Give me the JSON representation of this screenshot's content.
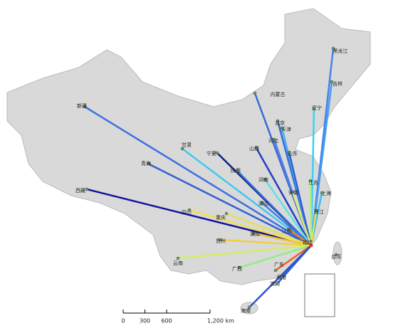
{
  "origin": {
    "name": "福建"
  },
  "provinces": [
    {
      "name": "黑龙江",
      "color": "#4a80e8"
    },
    {
      "name": "吉林",
      "color": "#40a0f0"
    },
    {
      "name": "内蒙古",
      "color": "#3a6ad8"
    },
    {
      "name": "辽宁",
      "color": "#40d0f0"
    },
    {
      "name": "北京",
      "color": "#3a6ad8"
    },
    {
      "name": "天津",
      "color": "#40b0f0"
    },
    {
      "name": "河北",
      "color": "#5080e0"
    },
    {
      "name": "山西",
      "color": "#2040c0"
    },
    {
      "name": "山东",
      "color": "#3060d0"
    },
    {
      "name": "宁夏",
      "color": "#102080"
    },
    {
      "name": "甘肃",
      "color": "#40c8f0"
    },
    {
      "name": "新疆",
      "color": "#3f6fe0"
    },
    {
      "name": "青海",
      "color": "#3060d0"
    },
    {
      "name": "陕西",
      "color": "#3070e0"
    },
    {
      "name": "河南",
      "color": "#60e0e0"
    },
    {
      "name": "江苏",
      "color": "#b0f080"
    },
    {
      "name": "安徽",
      "color": "#e0f060"
    },
    {
      "name": "上海",
      "color": "#40c0f0"
    },
    {
      "name": "湖北",
      "color": "#4080e0"
    },
    {
      "name": "西藏",
      "color": "#1010a0"
    },
    {
      "name": "四川",
      "color": "#f0e050"
    },
    {
      "name": "重庆",
      "color": "#e0e060"
    },
    {
      "name": "浙江",
      "color": "#f0e040"
    },
    {
      "name": "湖南",
      "color": "#f0c040"
    },
    {
      "name": "江西",
      "color": "#f08020"
    },
    {
      "name": "贵州",
      "color": "#f0d040"
    },
    {
      "name": "云南",
      "color": "#d0f060"
    },
    {
      "name": "广西",
      "color": "#90f080"
    },
    {
      "name": "广东",
      "color": "#f06020"
    },
    {
      "name": "香港",
      "color": "#4060e0"
    },
    {
      "name": "澳门",
      "color": "#3060d0"
    },
    {
      "name": "海南",
      "color": "#3050d0"
    },
    {
      "name": "台湾",
      "color": null
    }
  ],
  "scale_bar": {
    "ticks": [
      0,
      300,
      600,
      {
        "value": 1200,
        "label": "1,200 km"
      }
    ]
  }
}
